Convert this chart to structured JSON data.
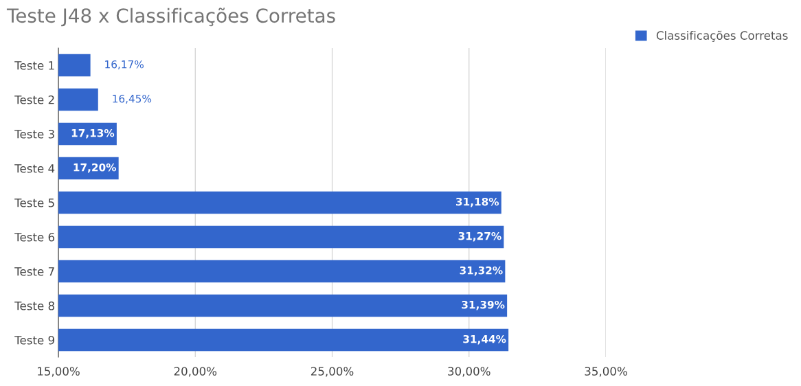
{
  "chart_data": {
    "type": "bar",
    "orientation": "horizontal",
    "title": "Teste J48 x Classificações Corretas",
    "categories": [
      "Teste 1",
      "Teste 2",
      "Teste 3",
      "Teste 4",
      "Teste 5",
      "Teste 6",
      "Teste 7",
      "Teste 8",
      "Teste 9"
    ],
    "series": [
      {
        "name": "Classificações Corretas",
        "color": "#3366cc",
        "values": [
          16.17,
          16.45,
          17.13,
          17.2,
          31.18,
          31.27,
          31.32,
          31.39,
          31.44
        ],
        "value_labels": [
          "16,17%",
          "16,45%",
          "17,13%",
          "17,20%",
          "31,18%",
          "31,27%",
          "31,32%",
          "31,39%",
          "31,44%"
        ]
      }
    ],
    "xlim": [
      15,
      35
    ],
    "xticks": [
      {
        "value": 15,
        "label": "15,00%"
      },
      {
        "value": 20,
        "label": "20,00%"
      },
      {
        "value": 25,
        "label": "25,00%"
      },
      {
        "value": 30,
        "label": "30,00%"
      },
      {
        "value": 35,
        "label": "35,00%"
      }
    ],
    "grid": "x",
    "legend": "top right"
  }
}
